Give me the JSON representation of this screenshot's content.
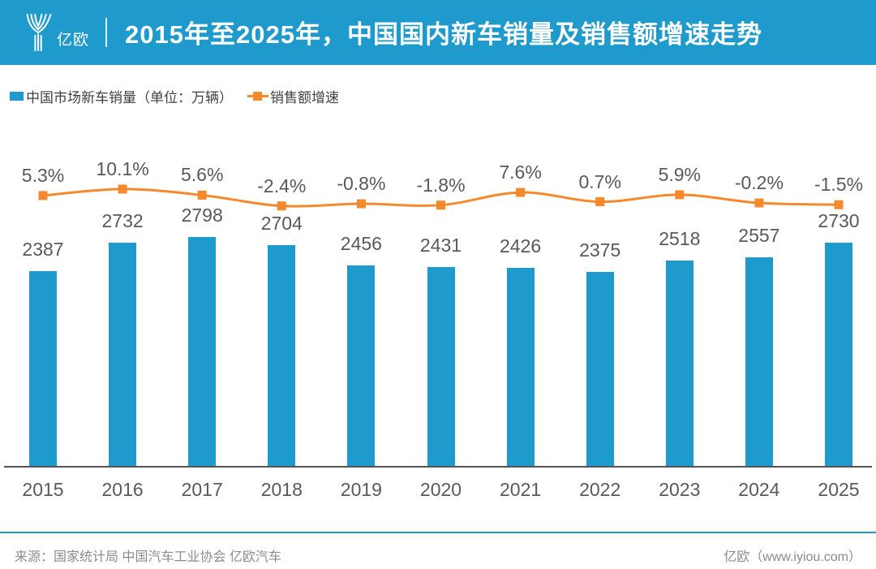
{
  "header": {
    "logo_text": "亿欧",
    "title": "2015年至2025年，中国国内新车销量及销售额增速走势"
  },
  "legend": {
    "sales_label": "中国市场新车销量（单位：万辆）",
    "growth_label": "销售额增速"
  },
  "colors": {
    "brand_blue": "#1E9ACD",
    "bar_blue": "#1E9ACD",
    "line_orange": "#F5892C",
    "label_gray": "#595959",
    "footer_gray": "#8C8C8C"
  },
  "chart_data": {
    "type": "combo",
    "title": "2015年至2025年，中国国内新车销量及销售额增速走势",
    "categories": [
      "2015",
      "2016",
      "2017",
      "2018",
      "2019",
      "2020",
      "2021",
      "2022",
      "2023",
      "2024",
      "2025"
    ],
    "series": [
      {
        "name": "中国市场新车销量（单位：万辆）",
        "type": "bar",
        "color": "#1E9ACD",
        "values": [
          2387,
          2732,
          2798,
          2704,
          2456,
          2431,
          2426,
          2375,
          2518,
          2557,
          2730
        ]
      },
      {
        "name": "销售额增速",
        "type": "line",
        "color": "#F5892C",
        "values": [
          5.3,
          10.1,
          5.6,
          -2.4,
          -0.8,
          -1.8,
          7.6,
          0.7,
          5.9,
          -0.2,
          -1.5
        ],
        "labels": [
          "5.3%",
          "10.1%",
          "5.6%",
          "-2.4%",
          "-0.8%",
          "-1.8%",
          "7.6%",
          "0.7%",
          "5.9%",
          "-0.2%",
          "-1.5%"
        ]
      }
    ],
    "grid": false,
    "legend_position": "top-left",
    "xlabel": "",
    "ylabel": ""
  },
  "footer": {
    "source": "来源：国家统计局 中国汽车工业协会 亿欧汽车",
    "brand": "亿欧（www.iyiou.com）"
  }
}
